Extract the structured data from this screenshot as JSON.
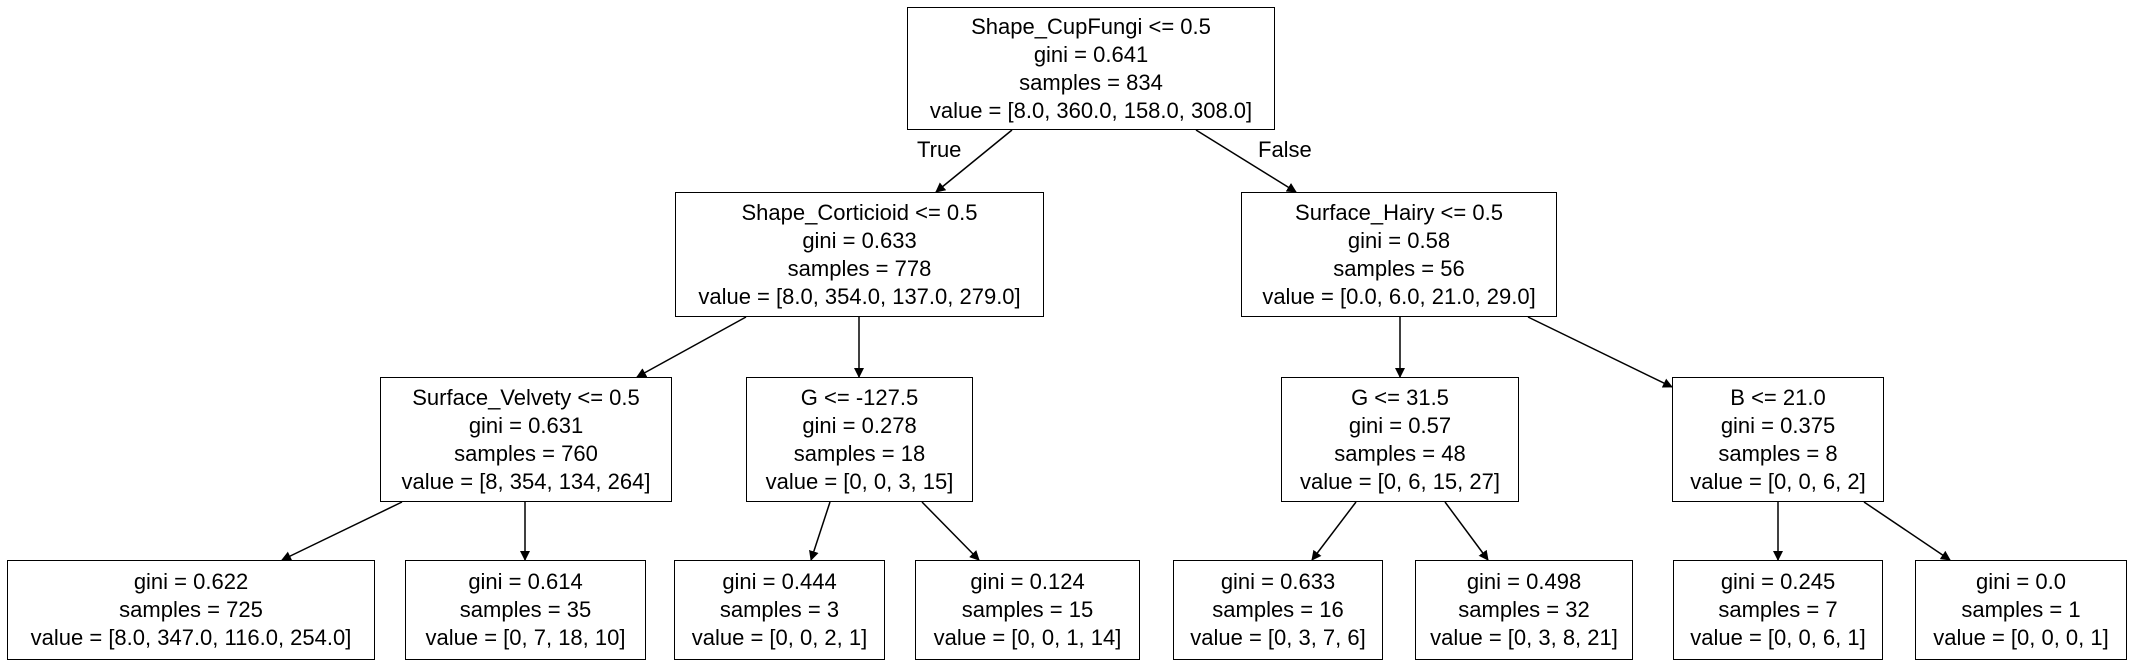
{
  "tree": {
    "nodes": [
      {
        "id": "n0",
        "lines": [
          "Shape_CupFungi <= 0.5",
          "gini = 0.641",
          "samples = 834",
          "value = [8.0, 360.0, 158.0, 308.0]"
        ]
      },
      {
        "id": "n1",
        "lines": [
          "Shape_Corticioid <= 0.5",
          "gini = 0.633",
          "samples = 778",
          "value = [8.0, 354.0, 137.0, 279.0]"
        ]
      },
      {
        "id": "n2",
        "lines": [
          "Surface_Hairy <= 0.5",
          "gini = 0.58",
          "samples = 56",
          "value = [0.0, 6.0, 21.0, 29.0]"
        ]
      },
      {
        "id": "n3",
        "lines": [
          "Surface_Velvety <= 0.5",
          "gini = 0.631",
          "samples = 760",
          "value = [8, 354, 134, 264]"
        ]
      },
      {
        "id": "n4",
        "lines": [
          "G <= -127.5",
          "gini = 0.278",
          "samples = 18",
          "value = [0, 0, 3, 15]"
        ]
      },
      {
        "id": "n5",
        "lines": [
          "G <= 31.5",
          "gini = 0.57",
          "samples = 48",
          "value = [0, 6, 15, 27]"
        ]
      },
      {
        "id": "n6",
        "lines": [
          "B <= 21.0",
          "gini = 0.375",
          "samples = 8",
          "value = [0, 0, 6, 2]"
        ]
      },
      {
        "id": "n7",
        "lines": [
          "gini = 0.622",
          "samples = 725",
          "value = [8.0, 347.0, 116.0, 254.0]"
        ]
      },
      {
        "id": "n8",
        "lines": [
          "gini = 0.614",
          "samples = 35",
          "value = [0, 7, 18, 10]"
        ]
      },
      {
        "id": "n9",
        "lines": [
          "gini = 0.444",
          "samples = 3",
          "value = [0, 0, 2, 1]"
        ]
      },
      {
        "id": "n10",
        "lines": [
          "gini = 0.124",
          "samples = 15",
          "value = [0, 0, 1, 14]"
        ]
      },
      {
        "id": "n11",
        "lines": [
          "gini = 0.633",
          "samples = 16",
          "value = [0, 3, 7, 6]"
        ]
      },
      {
        "id": "n12",
        "lines": [
          "gini = 0.498",
          "samples = 32",
          "value = [0, 3, 8, 21]"
        ]
      },
      {
        "id": "n13",
        "lines": [
          "gini = 0.245",
          "samples = 7",
          "value = [0, 0, 6, 1]"
        ]
      },
      {
        "id": "n14",
        "lines": [
          "gini = 0.0",
          "samples = 1",
          "value = [0, 0, 0, 1]"
        ]
      }
    ],
    "edges": [
      {
        "from": "n0",
        "to": "n1",
        "label": "True"
      },
      {
        "from": "n0",
        "to": "n2",
        "label": "False"
      },
      {
        "from": "n1",
        "to": "n3"
      },
      {
        "from": "n1",
        "to": "n4"
      },
      {
        "from": "n2",
        "to": "n5"
      },
      {
        "from": "n2",
        "to": "n6"
      },
      {
        "from": "n3",
        "to": "n7"
      },
      {
        "from": "n3",
        "to": "n8"
      },
      {
        "from": "n4",
        "to": "n9"
      },
      {
        "from": "n4",
        "to": "n10"
      },
      {
        "from": "n5",
        "to": "n11"
      },
      {
        "from": "n5",
        "to": "n12"
      },
      {
        "from": "n6",
        "to": "n13"
      },
      {
        "from": "n6",
        "to": "n14"
      }
    ]
  }
}
